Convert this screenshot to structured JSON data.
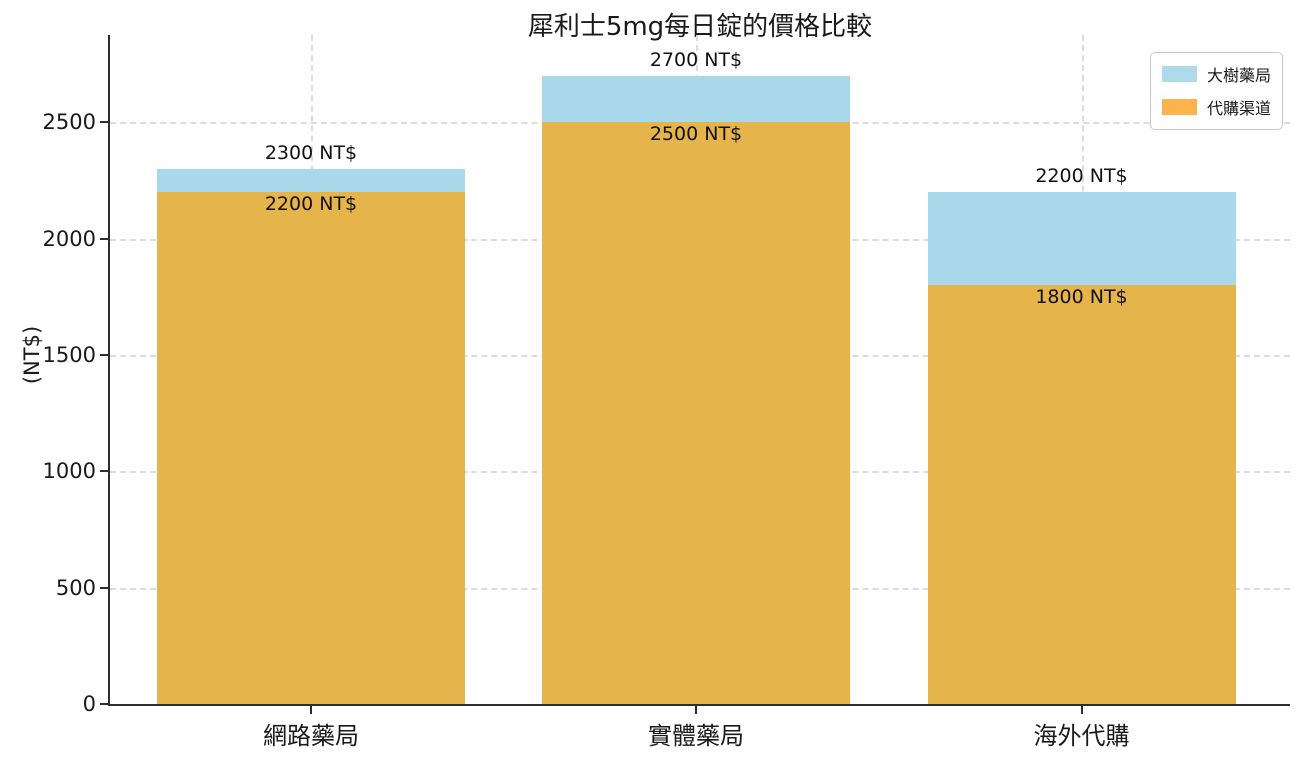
{
  "chart_data": {
    "type": "bar",
    "mode": "overlay",
    "title": "犀利士5mg每日錠的價格比較",
    "xlabel": "",
    "ylabel": "(NT$)",
    "categories": [
      "網路藥局",
      "實體藥局",
      "海外代購"
    ],
    "series": [
      {
        "name": "大樹藥局",
        "values": [
          2300,
          2700,
          2200
        ],
        "data_labels": [
          "2300 NT$",
          "2700 NT$",
          "2200 NT$"
        ],
        "color": "#A8D8EA",
        "legend_color": "#AFDAEC"
      },
      {
        "name": "代購渠道",
        "values": [
          2200,
          2500,
          1800
        ],
        "data_labels": [
          "2200 NT$",
          "2500 NT$",
          "1800 NT$"
        ],
        "color": "#E5B44A",
        "legend_color": "#FBB44C"
      }
    ],
    "ylim": [
      0,
      2875
    ],
    "yticks": [
      0,
      500,
      1000,
      1500,
      2000,
      2500
    ],
    "grid": {
      "horizontal": true,
      "vertical": true,
      "style": "dashed"
    },
    "legend_position": "upper right"
  }
}
